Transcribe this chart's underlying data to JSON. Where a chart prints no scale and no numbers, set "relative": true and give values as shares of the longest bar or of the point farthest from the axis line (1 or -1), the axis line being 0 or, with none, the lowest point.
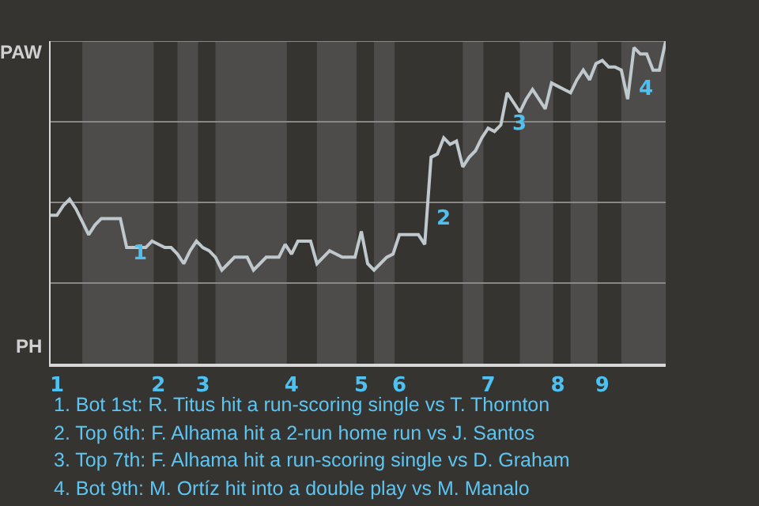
{
  "chart_data": {
    "type": "line",
    "relative": true,
    "categories": [
      null,
      "1",
      null,
      null,
      null,
      null,
      null,
      null,
      null,
      null,
      null,
      null,
      null,
      null,
      null,
      null,
      null,
      "2",
      null,
      null,
      null,
      null,
      null,
      null,
      "3",
      null,
      null,
      null,
      null,
      null,
      null,
      null,
      null,
      null,
      null,
      null,
      null,
      null,
      "4",
      null,
      null,
      null,
      null,
      null,
      null,
      null,
      null,
      null,
      null,
      "5",
      null,
      null,
      null,
      null,
      null,
      "6",
      null,
      null,
      null,
      null,
      null,
      null,
      null,
      null,
      null,
      null,
      null,
      null,
      null,
      "7",
      null,
      null,
      null,
      null,
      null,
      null,
      null,
      null,
      null,
      null,
      "8",
      null,
      null,
      null,
      null,
      null,
      null,
      "9",
      null,
      null,
      null,
      null,
      null,
      null,
      null,
      null,
      null,
      null
    ],
    "series": [
      {
        "color": "#bfc8cc",
        "values": [
          0.46,
          0.46,
          0.49,
          0.51,
          0.48,
          0.44,
          0.4,
          0.43,
          0.45,
          0.45,
          0.45,
          0.45,
          0.36,
          0.36,
          0.36,
          0.36,
          0.38,
          0.37,
          0.36,
          0.36,
          0.34,
          0.31,
          0.35,
          0.38,
          0.36,
          0.35,
          0.33,
          0.29,
          0.31,
          0.33,
          0.33,
          0.33,
          0.29,
          0.31,
          0.33,
          0.33,
          0.33,
          0.37,
          0.34,
          0.38,
          0.38,
          0.38,
          0.31,
          0.33,
          0.35,
          0.34,
          0.33,
          0.33,
          0.33,
          0.41,
          0.31,
          0.29,
          0.31,
          0.33,
          0.34,
          0.4,
          0.4,
          0.4,
          0.4,
          0.37,
          0.64,
          0.65,
          0.7,
          0.68,
          0.69,
          0.61,
          0.64,
          0.66,
          0.7,
          0.73,
          0.72,
          0.74,
          0.84,
          0.81,
          0.78,
          0.82,
          0.85,
          0.82,
          0.79,
          0.87,
          0.86,
          0.85,
          0.84,
          0.88,
          0.91,
          0.88,
          0.93,
          0.94,
          0.92,
          0.92,
          0.91,
          0.82,
          0.98,
          0.96,
          0.96,
          0.91,
          0.91,
          1.0
        ]
      }
    ],
    "marker": "none",
    "line_style": "solid",
    "ref_lines": [
      {
        "axis": "y",
        "value": 0.25,
        "color": "#8a8886"
      },
      {
        "axis": "y",
        "value": 0.5,
        "color": "#8a8886"
      },
      {
        "axis": "y",
        "value": 0.75,
        "color": "#8a8886"
      },
      {
        "axis": "y",
        "value": 1,
        "color": "#8a8886"
      }
    ],
    "annotations": [
      "PAW",
      "PH",
      "1",
      "2",
      "3",
      "4",
      "1. Bot 1st: R. Titus hit a run-scoring single vs T. Thornton",
      "2. Top 6th: F. Alhama hit a 2-run home run vs J. Santos",
      "3. Top 7th: F. Alhama hit a run-scoring single vs D. Graham",
      "4. Bot 9th: M. Ortíz hit into a double play vs M. Manalo"
    ]
  }
}
